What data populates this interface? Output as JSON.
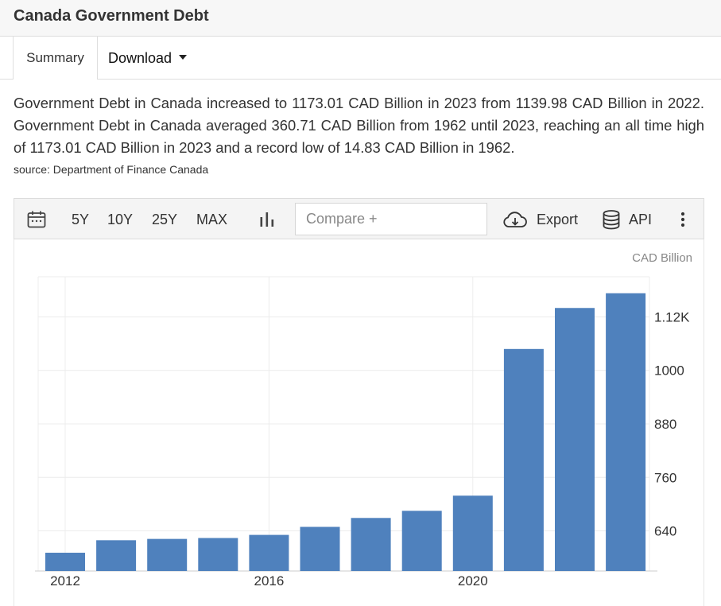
{
  "page": {
    "title": "Canada Government Debt",
    "tabs": {
      "summary": "Summary",
      "download": "Download"
    },
    "description": "Government Debt in Canada increased to 1173.01 CAD Billion in 2023 from 1139.98 CAD Billion in 2022. Government Debt in Canada averaged 360.71 CAD Billion from 1962 until 2023, reaching an all time high of 1173.01 CAD Billion in 2023 and a record low of 14.83 CAD Billion in 1962.",
    "source": "source: Department of Finance Canada"
  },
  "toolbar": {
    "ranges": [
      "5Y",
      "10Y",
      "25Y",
      "MAX"
    ],
    "compare_placeholder": "Compare +",
    "export_label": "Export",
    "api_label": "API",
    "icons": [
      "calendar-icon",
      "bar-chart-icon",
      "cloud-download-icon",
      "database-icon",
      "more-vertical-icon"
    ]
  },
  "colors": {
    "bar": "#4f81bd",
    "grid": "#ececec",
    "axis_text": "#333333",
    "unit_text": "#888888"
  },
  "chart_data": {
    "type": "bar",
    "unit_label": "CAD Billion",
    "x_tick_labels": [
      "2012",
      "2016",
      "2020"
    ],
    "y_tick_labels": [
      "640",
      "760",
      "880",
      "1000",
      "1.12K"
    ],
    "y_ticks": [
      640,
      760,
      880,
      1000,
      1120
    ],
    "ylim": [
      550,
      1210
    ],
    "categories": [
      "2012",
      "2013",
      "2014",
      "2015",
      "2016",
      "2017",
      "2018",
      "2019",
      "2020",
      "2021",
      "2022",
      "2023"
    ],
    "values": [
      591,
      619,
      622,
      624,
      631,
      649,
      669,
      685,
      719,
      1048,
      1140,
      1173
    ],
    "grid": true,
    "y_axis_position": "right"
  }
}
